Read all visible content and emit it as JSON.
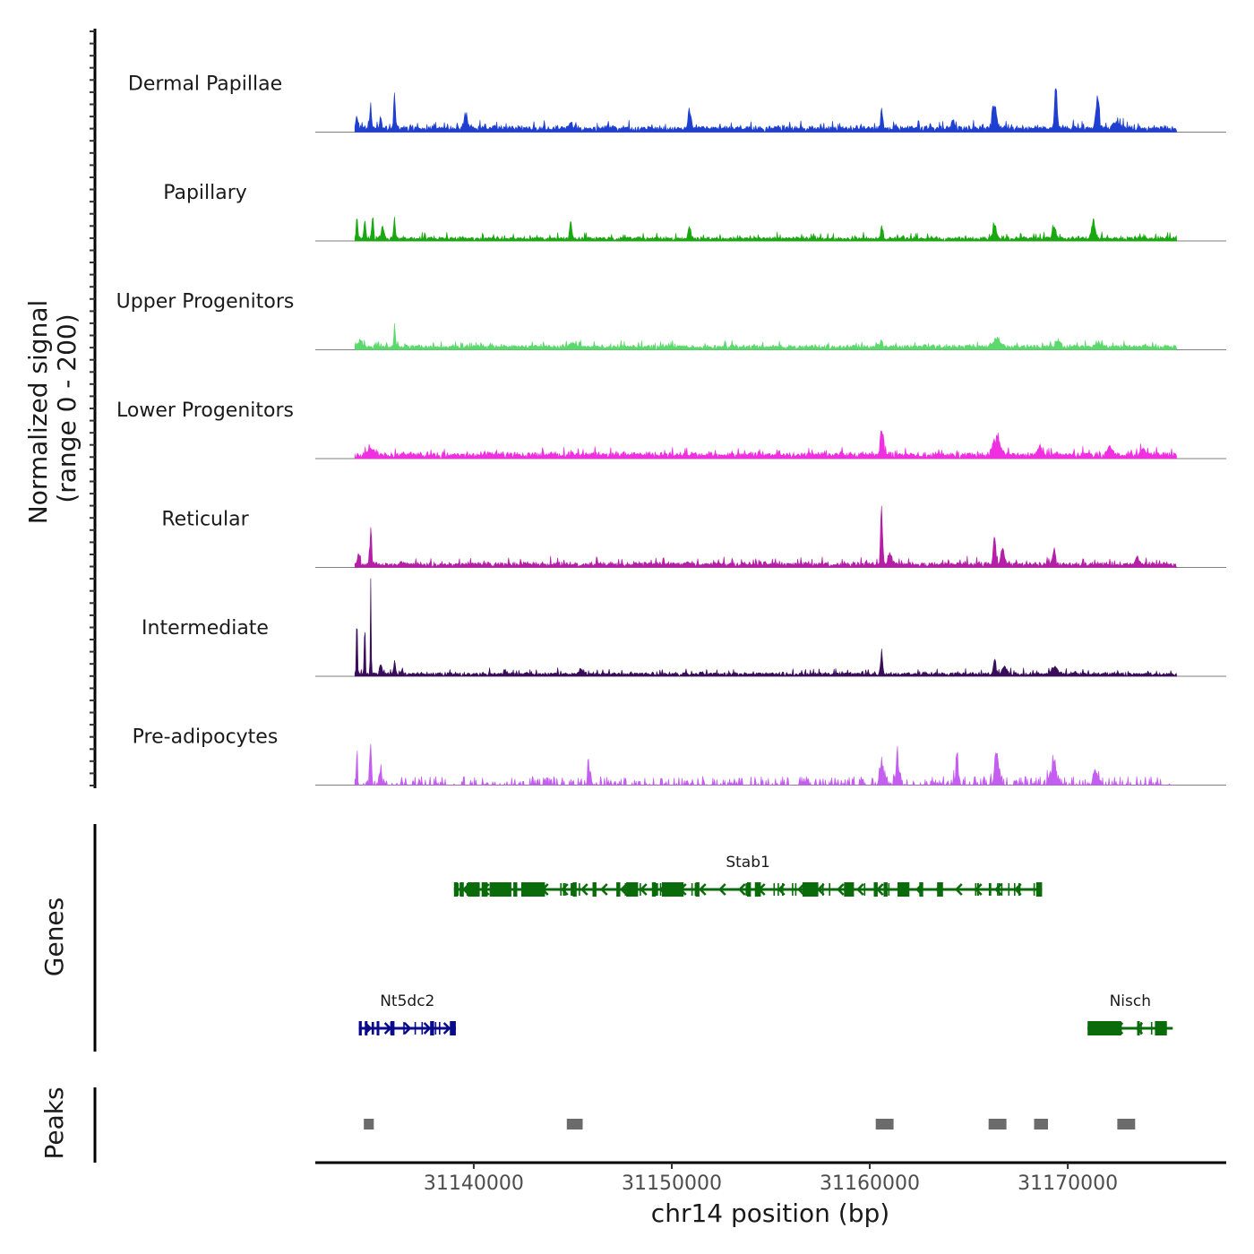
{
  "chart_data": {
    "type": "area",
    "region": {
      "chromosome": "chr14",
      "start": 31132000,
      "end": 31178000
    },
    "ylabel_main": "Normalized signal",
    "ylabel_sub": "(range 0 - 200)",
    "xlabel": "chr14 position (bp)",
    "x_ticks": [
      31140000,
      31150000,
      31160000,
      31170000
    ],
    "x_tick_labels": [
      "31140000",
      "31150000",
      "31160000",
      "31170000"
    ],
    "signal_extent": [
      31134000,
      31175500
    ],
    "ylim": [
      0,
      200
    ],
    "series": [
      {
        "name": "Dermal Papillae",
        "color": "#1f3fd1",
        "baseline": 10,
        "noise": 8,
        "peaks": [
          [
            31134100,
            28,
            60
          ],
          [
            31134800,
            40,
            70
          ],
          [
            31135300,
            25,
            70
          ],
          [
            31136000,
            78,
            60
          ],
          [
            31139600,
            32,
            130
          ],
          [
            31144900,
            18,
            90
          ],
          [
            31150900,
            42,
            110
          ],
          [
            31160600,
            45,
            70
          ],
          [
            31164200,
            22,
            90
          ],
          [
            31166300,
            55,
            140
          ],
          [
            31169400,
            100,
            90
          ],
          [
            31171500,
            70,
            110
          ],
          [
            31172500,
            12,
            300
          ]
        ]
      },
      {
        "name": "Papillary",
        "color": "#19a80f",
        "baseline": 6,
        "noise": 7,
        "peaks": [
          [
            31134100,
            48,
            50
          ],
          [
            31134500,
            45,
            60
          ],
          [
            31134900,
            58,
            60
          ],
          [
            31135400,
            22,
            100
          ],
          [
            31136000,
            52,
            60
          ],
          [
            31144900,
            40,
            70
          ],
          [
            31150900,
            25,
            100
          ],
          [
            31160600,
            27,
            70
          ],
          [
            31166300,
            32,
            120
          ],
          [
            31169300,
            25,
            120
          ],
          [
            31171300,
            42,
            110
          ]
        ]
      },
      {
        "name": "Upper Progenitors",
        "color": "#5cd96c",
        "baseline": 8,
        "noise": 6,
        "peaks": [
          [
            31134300,
            14,
            160
          ],
          [
            31136000,
            48,
            60
          ],
          [
            31145000,
            8,
            200
          ],
          [
            31160600,
            11,
            120
          ],
          [
            31166400,
            18,
            300
          ],
          [
            31169500,
            11,
            200
          ],
          [
            31171500,
            11,
            180
          ]
        ]
      },
      {
        "name": "Lower Progenitors",
        "color": "#ef2fe0",
        "baseline": 10,
        "noise": 8,
        "peaks": [
          [
            31134800,
            14,
            200
          ],
          [
            31160600,
            60,
            100
          ],
          [
            31166400,
            38,
            260
          ],
          [
            31168600,
            20,
            180
          ],
          [
            31172100,
            20,
            160
          ],
          [
            31173800,
            15,
            140
          ]
        ]
      },
      {
        "name": "Reticular",
        "color": "#b51ea6",
        "baseline": 8,
        "noise": 8,
        "peaks": [
          [
            31134200,
            28,
            70
          ],
          [
            31134800,
            95,
            55
          ],
          [
            31160600,
            130,
            70
          ],
          [
            31161000,
            28,
            120
          ],
          [
            31166300,
            68,
            80
          ],
          [
            31166700,
            38,
            120
          ],
          [
            31169300,
            35,
            100
          ],
          [
            31173500,
            18,
            130
          ]
        ]
      },
      {
        "name": "Intermediate",
        "color": "#3a0d5a",
        "baseline": 6,
        "noise": 6,
        "peaks": [
          [
            31134100,
            145,
            35
          ],
          [
            31134500,
            135,
            35
          ],
          [
            31134800,
            200,
            30
          ],
          [
            31135300,
            18,
            90
          ],
          [
            31136000,
            30,
            60
          ],
          [
            31145400,
            14,
            100
          ],
          [
            31160600,
            55,
            70
          ],
          [
            31166300,
            32,
            80
          ],
          [
            31166800,
            18,
            140
          ],
          [
            31169300,
            18,
            180
          ]
        ]
      },
      {
        "name": "Pre-adipocytes",
        "color": "#c35ef0",
        "baseline": 0,
        "noise": 18,
        "sparse": true,
        "peaks": [
          [
            31134100,
            85,
            40
          ],
          [
            31134800,
            100,
            40
          ],
          [
            31135300,
            40,
            60
          ],
          [
            31145800,
            45,
            60
          ],
          [
            31160600,
            35,
            120
          ],
          [
            31161400,
            55,
            100
          ],
          [
            31164400,
            65,
            80
          ],
          [
            31166400,
            55,
            140
          ],
          [
            31169300,
            38,
            160
          ],
          [
            31171400,
            32,
            140
          ]
        ]
      }
    ],
    "genes": [
      {
        "name": "Stab1",
        "color": "#0a6b0a",
        "strand": "-",
        "start": 31139000,
        "end": 31168700,
        "exons": [
          [
            31139000,
            31139200
          ],
          [
            31139300,
            31139500
          ],
          [
            31139700,
            31140300
          ],
          [
            31140400,
            31140700
          ],
          [
            31140800,
            31141900
          ],
          [
            31142000,
            31142200
          ],
          [
            31142400,
            31143600
          ],
          [
            31145000,
            31145200
          ],
          [
            31146000,
            31146200
          ],
          [
            31147200,
            31147400
          ],
          [
            31147700,
            31148300
          ],
          [
            31149000,
            31149200
          ],
          [
            31149500,
            31150600
          ],
          [
            31151200,
            31151400
          ],
          [
            31153800,
            31154000
          ],
          [
            31154200,
            31154500
          ],
          [
            31156600,
            31157400
          ],
          [
            31158700,
            31159200
          ],
          [
            31160200,
            31160400
          ],
          [
            31160700,
            31160900
          ],
          [
            31161400,
            31162000
          ],
          [
            31162500,
            31162700
          ],
          [
            31163400,
            31163700
          ],
          [
            31168400,
            31168700
          ]
        ]
      },
      {
        "name": "Nt5dc2",
        "color": "#0a0a8c",
        "strand": "+",
        "start": 31134200,
        "end": 31139100,
        "exons": [
          [
            31134200,
            31134350
          ],
          [
            31134500,
            31134600
          ],
          [
            31135100,
            31135200
          ],
          [
            31135800,
            31136000
          ],
          [
            31137800,
            31138000
          ],
          [
            31138800,
            31139100
          ]
        ]
      },
      {
        "name": "Nisch",
        "color": "#0a6b0a",
        "strand": "-",
        "start": 31171000,
        "end": 31175300,
        "exons": [
          [
            31171000,
            31172700
          ],
          [
            31173500,
            31173600
          ],
          [
            31174400,
            31175000
          ]
        ]
      }
    ],
    "peaks": [
      [
        31134450,
        31134950
      ],
      [
        31144700,
        31145500
      ],
      [
        31160300,
        31161200
      ],
      [
        31166000,
        31166900
      ],
      [
        31168300,
        31169000
      ],
      [
        31172500,
        31173400
      ]
    ],
    "gene_track_title": "Genes",
    "peak_track_title": "Peaks",
    "colors": {
      "axis": "#000000",
      "baseline": "#7f7f7f",
      "peak_box": "#6b6b6b",
      "tick_text": "#4d4d4d"
    }
  }
}
